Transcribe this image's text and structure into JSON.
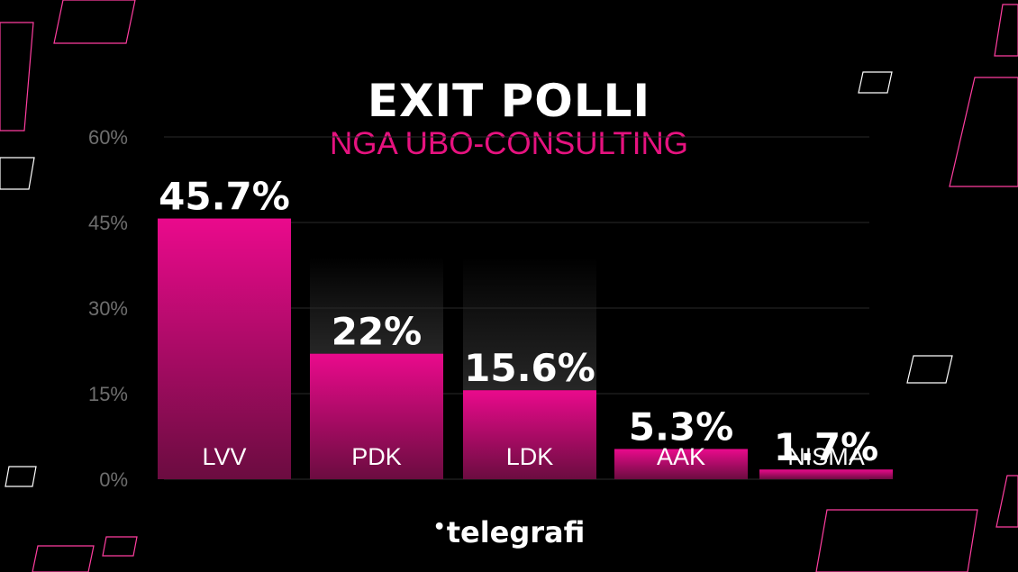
{
  "title": "EXIT POLLI",
  "subtitle": "NGA UBO-CONSULTING",
  "brand": {
    "name": "telegrafi",
    "color": "#ffffff"
  },
  "colors": {
    "background": "#000000",
    "bar_top": "#ea0a8c",
    "bar_bottom": "#6b0c40",
    "accent": "#e6127f",
    "grid": "#2a2a2a",
    "tick_label": "#6e6e6e"
  },
  "chart_data": {
    "type": "bar",
    "title": "EXIT POLLI",
    "subtitle": "NGA UBO-CONSULTING",
    "categories": [
      "LVV",
      "PDK",
      "LDK",
      "AAK",
      "NISMA"
    ],
    "values": [
      45.7,
      22,
      15.6,
      5.3,
      1.7
    ],
    "value_labels": [
      "45.7%",
      "22%",
      "15.6%",
      "5.3%",
      "1.7%"
    ],
    "yticks": [
      "0%",
      "15%",
      "30%",
      "45%",
      "60%"
    ],
    "ylim": [
      0,
      60
    ],
    "grid": true,
    "legend": "none"
  }
}
